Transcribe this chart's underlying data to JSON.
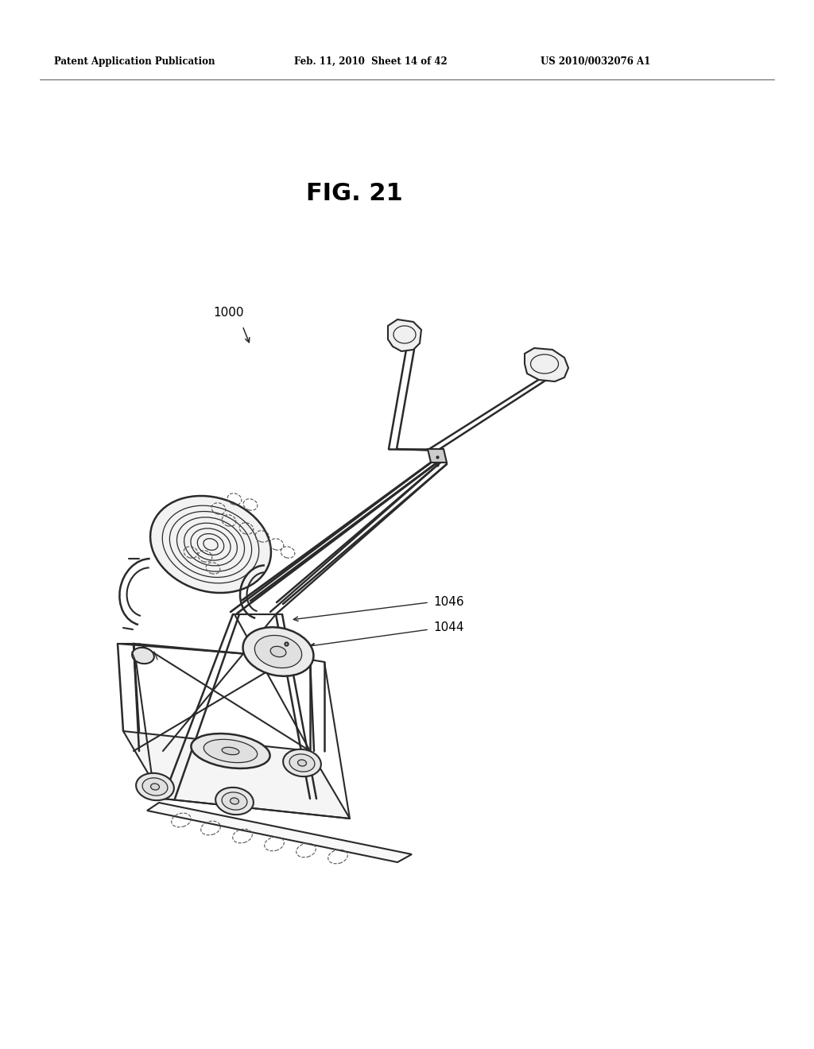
{
  "background_color": "#ffffff",
  "header_left": "Patent Application Publication",
  "header_mid": "Feb. 11, 2010  Sheet 14 of 42",
  "header_right": "US 2010/0032076 A1",
  "fig_label": "FIG. 21",
  "ref_1000_text": "1000",
  "ref_1046_text": "1046",
  "ref_1044_text": "1044",
  "line_color": "#2a2a2a",
  "text_color": "#000000",
  "lw_main": 1.5,
  "lw_thin": 0.9,
  "lw_dash": 0.8
}
